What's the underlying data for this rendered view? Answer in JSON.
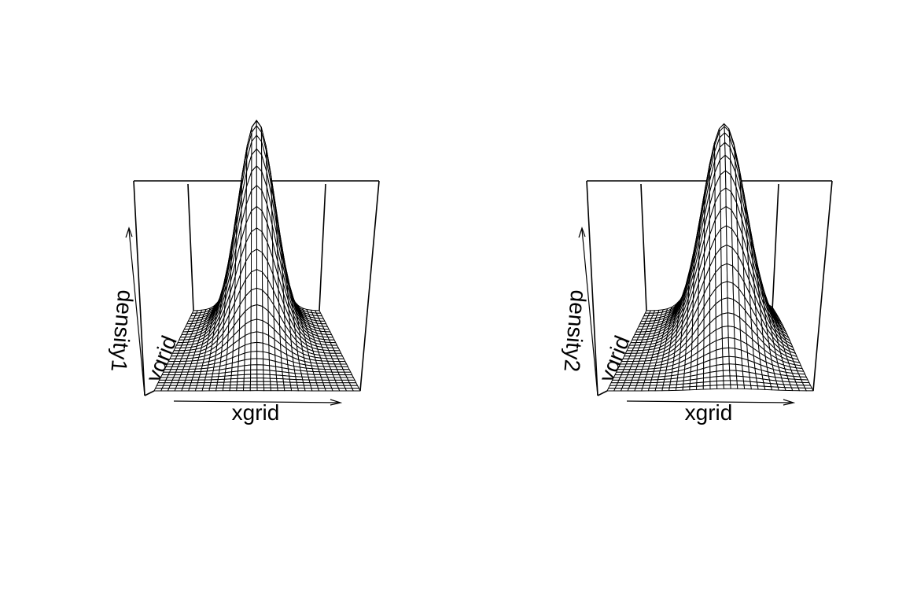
{
  "chart_data": [
    {
      "type": "surface",
      "view": "perspective",
      "xlabel": "xgrid",
      "ylabel": "ygrid",
      "zlabel": "density1",
      "grid_size": [
        30,
        30
      ],
      "peak": {
        "x": 0.5,
        "y": 0.8
      },
      "spread": {
        "x": 0.13,
        "y": 0.22
      }
    },
    {
      "type": "surface",
      "view": "perspective",
      "xlabel": "xgrid",
      "ylabel": "ygrid",
      "zlabel": "density2",
      "grid_size": [
        30,
        30
      ],
      "peak": {
        "x": 0.6,
        "y": 0.75
      },
      "spread": {
        "x": 0.15,
        "y": 0.25
      }
    }
  ]
}
